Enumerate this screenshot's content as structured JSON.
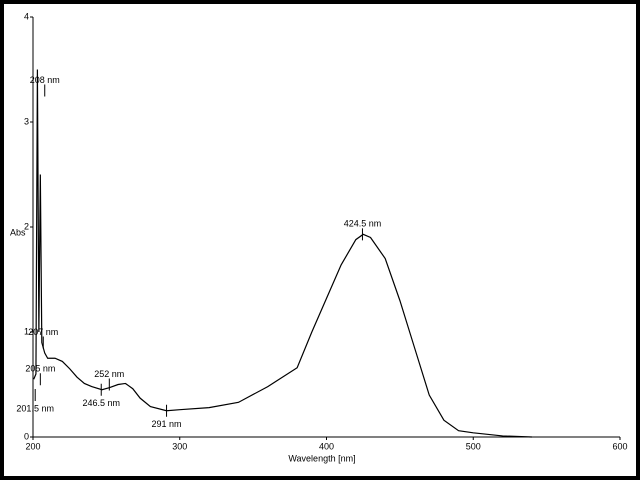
{
  "chart_data": {
    "type": "line",
    "x_label": "Wavelength [nm]",
    "y_label": "Abs",
    "x": [
      200.5,
      202,
      203,
      204,
      205,
      206,
      207,
      208,
      210,
      215,
      220,
      225,
      230,
      235,
      240,
      247,
      252,
      258,
      263,
      268,
      273,
      280,
      291,
      300,
      320,
      340,
      360,
      380,
      390,
      400,
      410,
      420,
      425,
      430,
      440,
      450,
      460,
      470,
      480,
      490,
      500,
      520,
      540
    ],
    "series": [
      {
        "name": "Abs",
        "color": "#000000",
        "values": [
          0.55,
          0.6,
          3.5,
          1.0,
          2.5,
          0.9,
          0.85,
          0.8,
          0.75,
          0.75,
          0.72,
          0.65,
          0.57,
          0.51,
          0.48,
          0.45,
          0.47,
          0.5,
          0.51,
          0.46,
          0.37,
          0.29,
          0.25,
          0.26,
          0.28,
          0.33,
          0.48,
          0.66,
          1.0,
          1.32,
          1.64,
          1.88,
          1.93,
          1.9,
          1.7,
          1.3,
          0.85,
          0.4,
          0.16,
          0.06,
          0.04,
          0.01,
          0.0
        ]
      }
    ],
    "xlim": [
      200,
      600
    ],
    "xticks": [
      200,
      300,
      400,
      500,
      600
    ],
    "ylim": [
      0,
      4
    ],
    "yticks": [
      0,
      1,
      2,
      3,
      4
    ],
    "annotations": [
      {
        "label": "208 nm",
        "x": 208,
        "y": 3.3,
        "position": "above"
      },
      {
        "label": "207 nm",
        "x": 207,
        "y": 0.9,
        "position": "above"
      },
      {
        "label": "205 nm",
        "x": 205,
        "y": 0.55,
        "position": "above"
      },
      {
        "label": "201.5 nm",
        "x": 201.5,
        "y": 0.4,
        "position": "below"
      },
      {
        "label": "246.5 nm",
        "x": 246.5,
        "y": 0.45,
        "position": "below"
      },
      {
        "label": "252 nm",
        "x": 252,
        "y": 0.5,
        "position": "above"
      },
      {
        "label": "291 nm",
        "x": 291,
        "y": 0.25,
        "position": "below"
      },
      {
        "label": "424.5 nm",
        "x": 424.5,
        "y": 1.93,
        "position": "above"
      }
    ]
  }
}
